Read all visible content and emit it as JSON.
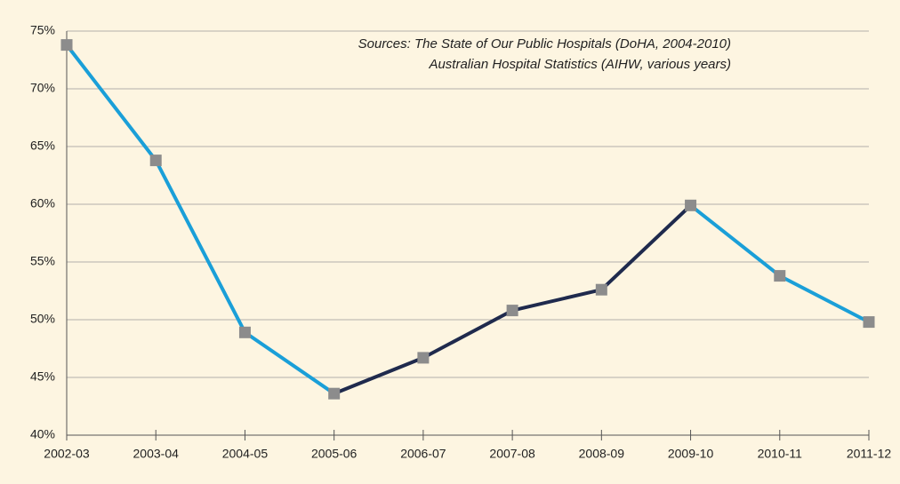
{
  "chart_data": {
    "type": "line",
    "annotations": [
      "Sources: The State of Our Public Hospitals (DoHA, 2004-2010)",
      "Australian Hospital Statistics (AIHW, various years)"
    ],
    "categories": [
      "2002-03",
      "2003-04",
      "2004-05",
      "2005-06",
      "2006-07",
      "2007-08",
      "2008-09",
      "2009-10",
      "2010-11",
      "2011-12"
    ],
    "values": [
      73.8,
      63.8,
      48.9,
      43.6,
      46.7,
      50.8,
      52.6,
      59.9,
      53.8,
      49.8
    ],
    "segment_colors": [
      "#1a9fd8",
      "#1a9fd8",
      "#1a9fd8",
      "#1f2a4d",
      "#1f2a4d",
      "#1f2a4d",
      "#1f2a4d",
      "#1a9fd8",
      "#1a9fd8"
    ],
    "marker_color": "#8c8c8c",
    "ylim": [
      40,
      75
    ],
    "yticks": [
      {
        "value": 40,
        "label": "40%"
      },
      {
        "value": 45,
        "label": "45%"
      },
      {
        "value": 50,
        "label": "50%"
      },
      {
        "value": 55,
        "label": "55%"
      },
      {
        "value": 60,
        "label": "60%"
      },
      {
        "value": 65,
        "label": "65%"
      },
      {
        "value": 70,
        "label": "70%"
      },
      {
        "value": 75,
        "label": "75%"
      }
    ],
    "grid": true
  }
}
